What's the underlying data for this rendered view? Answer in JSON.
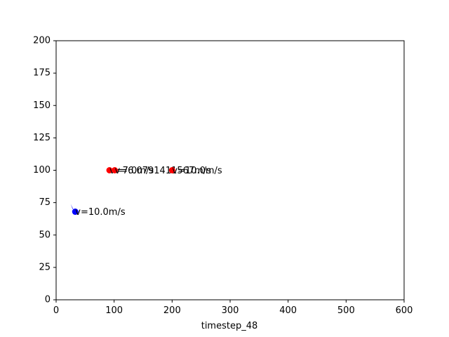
{
  "chart_data": {
    "type": "scatter",
    "xlabel": "timestep_48",
    "ylabel": "",
    "xlim": [
      0,
      600
    ],
    "ylim": [
      0,
      200
    ],
    "xticks": [
      "0",
      "100",
      "200",
      "300",
      "400",
      "500",
      "600"
    ],
    "yticks": [
      "0",
      "25",
      "50",
      "75",
      "100",
      "125",
      "150",
      "175",
      "200"
    ],
    "grid": false,
    "points": [
      {
        "x": 92,
        "y": 100,
        "label": "v=7.0m/s",
        "color": "#ff0000"
      },
      {
        "x": 101,
        "y": 100,
        "label": "v=6.0791411567m/s",
        "color": "#ff0000"
      },
      {
        "x": 200,
        "y": 100,
        "label": "v=10.0m/s",
        "color": "#ff0000"
      },
      {
        "x": 33,
        "y": 68,
        "label": "v=10.0m/s",
        "color": "#0000ff"
      }
    ],
    "trail": {
      "color": "#0000ff",
      "x": [
        25,
        27,
        29,
        31,
        33
      ],
      "y": [
        74,
        72,
        70,
        69,
        68
      ]
    }
  }
}
